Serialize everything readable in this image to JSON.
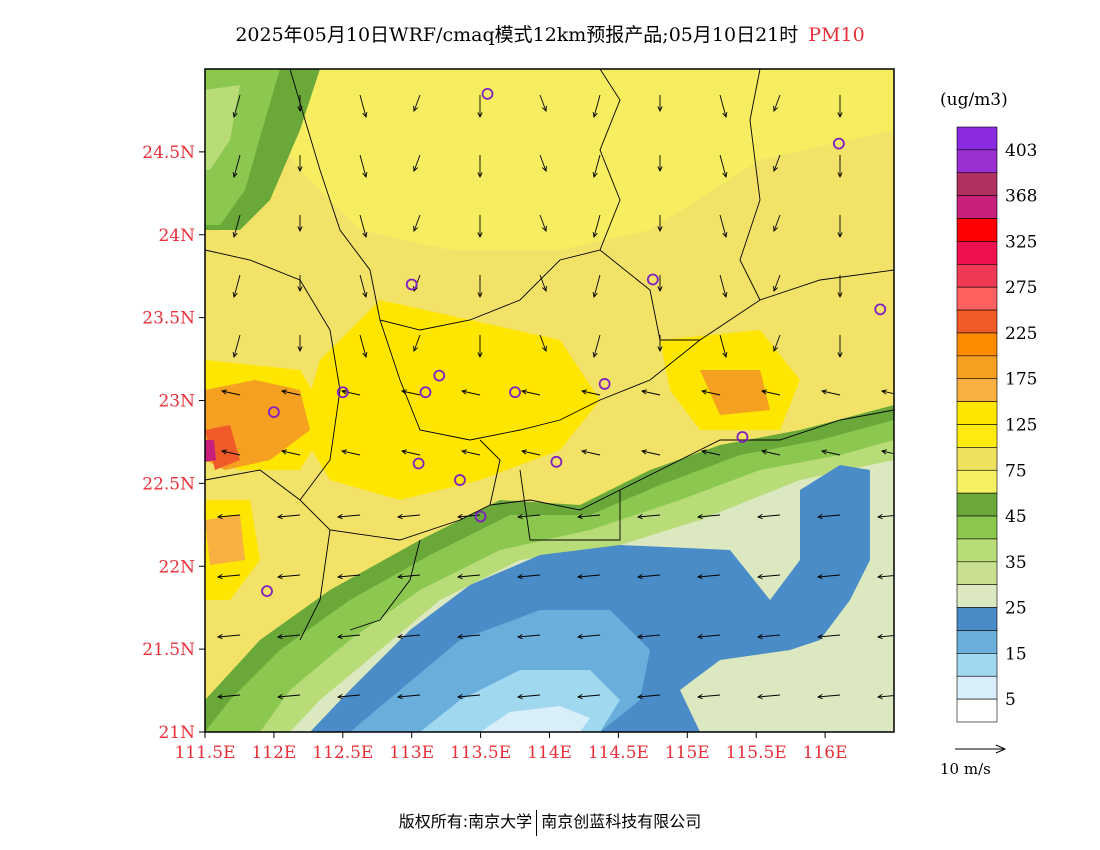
{
  "title": {
    "main": "2025年05月10日WRF/cmaq模式12km预报产品;05月10日21时",
    "pollutant": "PM10",
    "pollutant_color": "#e8303a"
  },
  "units": "(ug/m3)",
  "vector_legend": {
    "label": "10 m/s"
  },
  "footer": {
    "left": "版权所有:南京大学",
    "right": "南京创蓝科技有限公司"
  },
  "axes": {
    "lat_labels": [
      "24.5N",
      "24N",
      "23.5N",
      "23N",
      "22.5N",
      "22N",
      "21.5N",
      "21N"
    ],
    "lat_values": [
      24.5,
      24,
      23.5,
      23,
      22.5,
      22,
      21.5,
      21
    ],
    "lon_labels": [
      "111.5E",
      "112E",
      "112.5E",
      "113E",
      "113.5E",
      "114E",
      "114.5E",
      "115E",
      "115.5E",
      "116E"
    ],
    "lon_values": [
      111.5,
      112,
      112.5,
      113,
      113.5,
      114,
      114.5,
      115,
      115.5,
      116
    ],
    "lat_range": [
      21,
      25
    ],
    "lon_range": [
      111.5,
      116.5
    ],
    "tick_color": "#e8303a"
  },
  "colorbar": {
    "labels": [
      "403",
      "368",
      "325",
      "275",
      "225",
      "175",
      "125",
      "75",
      "45",
      "35",
      "25",
      "15",
      "5"
    ],
    "colors": [
      "#8a2be2",
      "#9b30d0",
      "#b03060",
      "#c8207a",
      "#ff0000",
      "#f01050",
      "#f03a55",
      "#ff6060",
      "#f05a28",
      "#ff8c00",
      "#f5a020",
      "#f8b040",
      "#ffe600",
      "#ffea10",
      "#f0e060",
      "#f4f060",
      "#6aa83a",
      "#8cc850",
      "#b8dc78",
      "#c8e090",
      "#dce8c0",
      "#4a8cc8",
      "#6aaedc",
      "#a0d8f0",
      "#d8eef8",
      "#ffffff"
    ]
  },
  "stations": [
    {
      "lon": 113.55,
      "lat": 24.85
    },
    {
      "lon": 116.1,
      "lat": 24.55
    },
    {
      "lon": 113.0,
      "lat": 23.7
    },
    {
      "lon": 114.75,
      "lat": 23.73
    },
    {
      "lon": 116.4,
      "lat": 23.55
    },
    {
      "lon": 113.2,
      "lat": 23.15
    },
    {
      "lon": 112.5,
      "lat": 23.05
    },
    {
      "lon": 113.1,
      "lat": 23.05
    },
    {
      "lon": 113.75,
      "lat": 23.05
    },
    {
      "lon": 114.4,
      "lat": 23.1
    },
    {
      "lon": 112.0,
      "lat": 22.93
    },
    {
      "lon": 115.4,
      "lat": 22.78
    },
    {
      "lon": 113.05,
      "lat": 22.62
    },
    {
      "lon": 114.05,
      "lat": 22.63
    },
    {
      "lon": 113.35,
      "lat": 22.52
    },
    {
      "lon": 113.5,
      "lat": 22.3
    },
    {
      "lon": 111.95,
      "lat": 21.85
    }
  ]
}
